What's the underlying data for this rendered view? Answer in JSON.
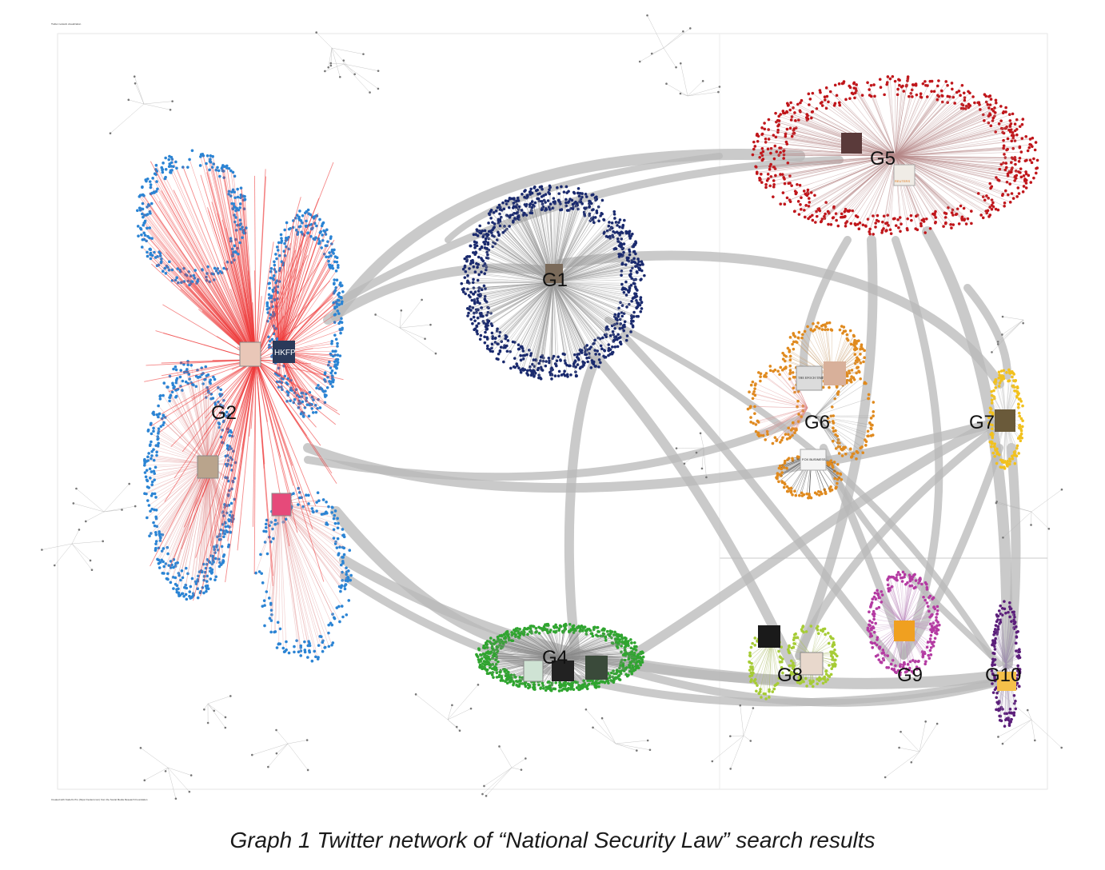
{
  "caption": "Graph 1 Twitter network of “National Security Law” search results",
  "header_note": "Twitter network visualization",
  "footer_note": "Created with NodeXL Pro (https://nodexl.com) from the Social Media Research Foundation",
  "colors": {
    "G1": "#1a2a6e",
    "G2": "#2b84d4",
    "G2_edges": "#ee3a3a",
    "G4": "#2fa52f",
    "G5": "#c0161b",
    "G6": "#e08a1e",
    "G7": "#f2c11d",
    "G8": "#a6cc35",
    "G9": "#b43aa2",
    "G10": "#5b1e7a",
    "bundle": "#b8b8b8"
  },
  "groups": [
    {
      "id": "G1",
      "label": "G1"
    },
    {
      "id": "G2",
      "label": "G2"
    },
    {
      "id": "G4",
      "label": "G4"
    },
    {
      "id": "G5",
      "label": "G5"
    },
    {
      "id": "G6",
      "label": "G6"
    },
    {
      "id": "G7",
      "label": "G7"
    },
    {
      "id": "G8",
      "label": "G8"
    },
    {
      "id": "G9",
      "label": "G9"
    },
    {
      "id": "G10",
      "label": "G10"
    }
  ],
  "thumbnails": [
    "HKFP",
    "THE EPOCH TIMES",
    "FOX BUSINESS",
    "REUTERS"
  ]
}
